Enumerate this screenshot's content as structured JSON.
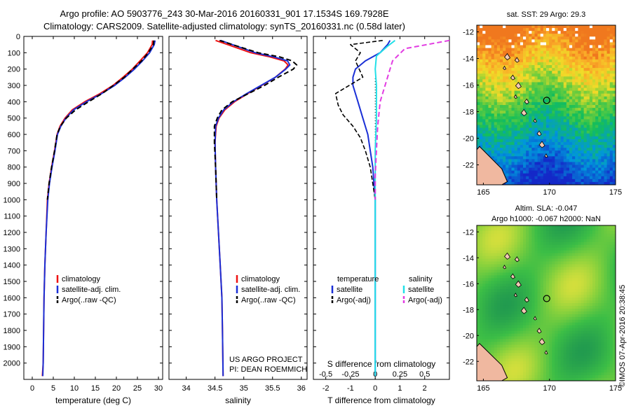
{
  "header": {
    "line1": "Argo profile: AO 5903776_243 30-Mar-2016 20160331_901 17.1534S 169.7928E",
    "line2": "Climatology: CARS2009. Satellite-adjusted climatology: synTS_20160331.nc (0.58d later)"
  },
  "colors": {
    "climatology": "#ee1111",
    "satellite": "#1a2fd6",
    "argo": "#000000",
    "sal_satellite": "#22e0e8",
    "sal_argo": "#e23ce2",
    "land": "#f0b8a0"
  },
  "chart_data": [
    {
      "type": "line",
      "xlabel": "temperature (deg C)",
      "ylabel": "",
      "xlim": [
        -2,
        31
      ],
      "ylim": [
        2100,
        0
      ],
      "xticks": [
        "0",
        "5",
        "10",
        "15",
        "20",
        "25",
        "30"
      ],
      "yticks": [
        "0",
        "100",
        "200",
        "300",
        "400",
        "500",
        "600",
        "700",
        "800",
        "900",
        "1000",
        "1100",
        "1200",
        "1300",
        "1400",
        "1500",
        "1600",
        "1700",
        "1800",
        "1900",
        "2000"
      ],
      "legend": [
        "climatology",
        "satellite-adj. clim.",
        "Argo(..raw -QC)"
      ],
      "series": [
        {
          "name": "climatology",
          "x": [
            28.6,
            28.5,
            27.4,
            25.6,
            23.8,
            21.6,
            19.2,
            16.1,
            12.5,
            9.5,
            7.8,
            6.6,
            5.9,
            5.3,
            4.6,
            4.0,
            3.6,
            3.3,
            3.0,
            2.8,
            2.7,
            2.6,
            2.4
          ],
          "y": [
            25,
            50,
            100,
            150,
            200,
            250,
            300,
            350,
            400,
            450,
            500,
            550,
            600,
            700,
            800,
            900,
            1000,
            1200,
            1400,
            1600,
            1800,
            2000,
            2080
          ]
        },
        {
          "name": "satellite-adj. clim.",
          "x": [
            29.2,
            29.0,
            27.9,
            26.2,
            24.3,
            22.1,
            19.6,
            16.5,
            12.9,
            9.8,
            8.0,
            6.8,
            6.0,
            5.4,
            4.7,
            4.1,
            3.7,
            3.3,
            3.0,
            2.8,
            2.7,
            2.6,
            2.5
          ],
          "y": [
            25,
            50,
            100,
            150,
            200,
            250,
            300,
            350,
            400,
            450,
            500,
            550,
            600,
            700,
            800,
            900,
            1000,
            1200,
            1400,
            1600,
            1800,
            2000,
            2080
          ]
        },
        {
          "name": "Argo(..raw -QC)",
          "x": [
            28.9,
            28.8,
            27.6,
            26.0,
            23.9,
            21.9,
            19.3,
            16.6,
            13.4,
            10.3,
            8.1,
            6.7,
            5.9,
            5.3,
            4.6,
            4.0,
            3.6
          ],
          "y": [
            25,
            50,
            100,
            150,
            200,
            250,
            300,
            350,
            400,
            450,
            500,
            550,
            600,
            700,
            800,
            900,
            1000
          ]
        }
      ]
    },
    {
      "type": "line",
      "xlabel": "salinity",
      "xlim": [
        33.7,
        36.1
      ],
      "ylim": [
        2100,
        0
      ],
      "xticks": [
        "34",
        "34.5",
        "35",
        "35.5",
        "36"
      ],
      "legend": [
        "climatology",
        "satellite-adj. clim.",
        "Argo(..raw -QC)"
      ],
      "annotation": [
        "US ARGO PROJECT",
        "PI: DEAN ROEMMICH"
      ],
      "series": [
        {
          "name": "climatology",
          "x": [
            34.51,
            34.72,
            35.12,
            35.45,
            35.7,
            35.77,
            35.72,
            35.55,
            35.31,
            35.07,
            34.84,
            34.67,
            34.57,
            34.52,
            34.5,
            34.51,
            34.53,
            34.56,
            34.59,
            34.62,
            34.63,
            34.64
          ],
          "y": [
            25,
            50,
            100,
            125,
            150,
            175,
            200,
            250,
            300,
            350,
            400,
            450,
            500,
            550,
            650,
            800,
            1000,
            1200,
            1400,
            1600,
            1800,
            2080
          ]
        },
        {
          "name": "satellite-adj. clim.",
          "x": [
            34.6,
            34.8,
            35.2,
            35.52,
            35.76,
            35.8,
            35.73,
            35.55,
            35.3,
            35.05,
            34.82,
            34.65,
            34.56,
            34.51,
            34.5,
            34.51,
            34.53,
            34.56,
            34.59,
            34.62,
            34.63,
            34.64
          ],
          "y": [
            25,
            50,
            100,
            125,
            150,
            175,
            200,
            250,
            300,
            350,
            400,
            450,
            500,
            550,
            650,
            800,
            1000,
            1200,
            1400,
            1600,
            1800,
            2080
          ]
        },
        {
          "name": "Argo(..raw -QC)",
          "x": [
            34.58,
            34.8,
            35.25,
            35.62,
            35.84,
            35.92,
            35.86,
            35.6,
            35.36,
            35.08,
            34.8,
            34.62,
            34.54,
            34.49,
            34.49,
            34.51,
            34.53
          ],
          "y": [
            25,
            50,
            100,
            125,
            150,
            175,
            200,
            250,
            300,
            350,
            400,
            450,
            500,
            550,
            650,
            800,
            1000
          ]
        }
      ]
    },
    {
      "type": "line",
      "xlabel": "T difference from climatology",
      "x2label": "S difference from climatology",
      "xlim": [
        -2.5,
        3
      ],
      "ylim": [
        2100,
        0
      ],
      "xticks": [
        "-2",
        "-1",
        "0",
        "1",
        "2"
      ],
      "x2ticks": [
        "-0.5",
        "-0.25",
        "0",
        "0.25",
        "0.5"
      ],
      "legend_temperature": [
        "temperature",
        "satellite",
        "Argo(-adj)"
      ],
      "legend_salinity": [
        "salinity",
        "satellite",
        "Argo(-adj)"
      ],
      "series": [
        {
          "name": "satellite",
          "x": [
            0.6,
            0.5,
            0.2,
            -0.4,
            -0.8,
            -0.9,
            -0.9,
            -0.7,
            -0.5,
            -0.3,
            -0.2,
            -0.1,
            -0.05,
            0,
            0,
            0,
            0,
            0,
            0,
            0
          ],
          "y": [
            25,
            50,
            100,
            150,
            200,
            250,
            300,
            400,
            500,
            600,
            700,
            800,
            900,
            1000,
            1200,
            1400,
            1600,
            1800,
            2000,
            2080
          ]
        },
        {
          "name": "Argo(-adj)",
          "x": [
            0.3,
            -1.0,
            -0.6,
            -0.8,
            -0.5,
            -1.6,
            -1.5,
            -1.3,
            -0.9,
            -0.6,
            -0.4,
            -0.2,
            -0.1,
            0
          ],
          "y": [
            25,
            50,
            100,
            150,
            250,
            350,
            420,
            480,
            550,
            620,
            700,
            800,
            900,
            1000
          ]
        },
        {
          "name": "satellite (S)",
          "x": [
            0.8,
            0.5,
            0.05,
            0.0,
            0.05,
            0.05,
            0.05,
            0.0,
            0.0,
            0.0,
            0.0,
            0.0,
            0.0,
            0.0
          ],
          "y": [
            25,
            60,
            120,
            200,
            300,
            400,
            500,
            700,
            900,
            1200,
            1500,
            1800,
            2000,
            2080
          ]
        },
        {
          "name": "Argo(-adj) (S)",
          "x": [
            3.0,
            1.2,
            0.7,
            0.5,
            0.2,
            0.1,
            0.05,
            0.0,
            0.0,
            0.0
          ],
          "y": [
            25,
            75,
            150,
            250,
            400,
            550,
            700,
            850,
            950,
            1000
          ]
        }
      ]
    }
  ],
  "maps": {
    "sst": {
      "title": "sat. SST: 29 Argo: 29.3",
      "yticks": [
        "-12",
        "-14",
        "-16",
        "-18",
        "-20",
        "-22"
      ],
      "xticks": [
        "165",
        "170",
        "175"
      ]
    },
    "sla": {
      "title1": "Altim. SLA: -0.047",
      "title2": "Argo h1000: -0.067 h2000: NaN",
      "yticks": [
        "-12",
        "-14",
        "-16",
        "-18",
        "-20",
        "-22"
      ],
      "xticks": [
        "165",
        "170",
        "175"
      ]
    }
  },
  "footer": {
    "credit": "©IMOS 07-Apr-2016 20:38:45"
  }
}
